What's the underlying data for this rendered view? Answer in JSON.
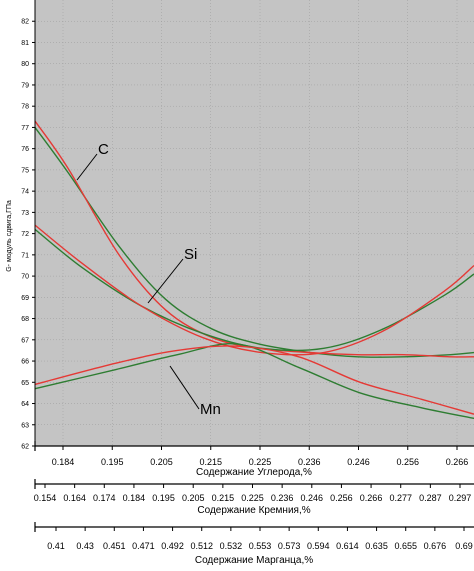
{
  "chart_data": {
    "type": "line",
    "ylabel": "G- модуль сдвига,ГПа",
    "ylim": [
      62,
      83
    ],
    "yticks": [
      62,
      63,
      64,
      65,
      66,
      67,
      68,
      69,
      70,
      71,
      72,
      73,
      74,
      75,
      76,
      77,
      78,
      79,
      80,
      81,
      82
    ],
    "grid": true,
    "background": "#c4c4c4",
    "axes": [
      {
        "id": "carbon",
        "title": "Содержание Углерода,%",
        "xlim": [
          0.177,
          0.271
        ],
        "tick_labels": [
          "0.184",
          "0.195",
          "0.205",
          "0.215",
          "0.225",
          "0.236",
          "0.246",
          "0.256",
          "0.266"
        ]
      },
      {
        "id": "silicon",
        "title": "Содержание Кремния,%",
        "xlim": [
          0.148,
          0.297
        ],
        "tick_labels": [
          "0.154",
          "0.164",
          "0.174",
          "0.184",
          "0.195",
          "0.205",
          "0.215",
          "0.225",
          "0.236",
          "0.246",
          "0.256",
          "0.266",
          "0.277",
          "0.287",
          "0.297"
        ]
      },
      {
        "id": "manganese",
        "title": "Содержание Марганца,%",
        "xlim": [
          0.397,
          0.69
        ],
        "tick_labels": [
          "0.41",
          "0.43",
          "0.451",
          "0.471",
          "0.492",
          "0.512",
          "0.532",
          "0.553",
          "0.573",
          "0.594",
          "0.614",
          "0.635",
          "0.655",
          "0.676",
          "0.69"
        ]
      }
    ],
    "series": [
      {
        "name": "C",
        "axis": "carbon",
        "curves": [
          {
            "color": "#2e7d32",
            "x": [
              0.177,
              0.184,
              0.195,
              0.205,
              0.215,
              0.225,
              0.236,
              0.246,
              0.256,
              0.266,
              0.271
            ],
            "y": [
              77.0,
              74.9,
              71.4,
              68.9,
              67.5,
              66.8,
              66.4,
              66.2,
              66.2,
              66.3,
              66.4
            ]
          },
          {
            "color": "#e53935",
            "x": [
              0.177,
              0.184,
              0.195,
              0.205,
              0.215,
              0.225,
              0.236,
              0.246,
              0.256,
              0.266,
              0.271
            ],
            "y": [
              77.3,
              75.1,
              71.0,
              68.4,
              67.1,
              66.6,
              66.4,
              66.3,
              66.3,
              66.2,
              66.2
            ]
          }
        ]
      },
      {
        "name": "Si",
        "axis": "silicon",
        "curves": [
          {
            "color": "#2e7d32",
            "x": [
              0.148,
              0.164,
              0.184,
              0.205,
              0.225,
              0.246,
              0.266,
              0.287,
              0.297
            ],
            "y": [
              72.2,
              70.4,
              68.6,
              67.3,
              66.6,
              66.6,
              67.5,
              69.1,
              70.1
            ]
          },
          {
            "color": "#e53935",
            "x": [
              0.148,
              0.164,
              0.184,
              0.205,
              0.225,
              0.246,
              0.266,
              0.287,
              0.297
            ],
            "y": [
              72.4,
              70.6,
              68.6,
              67.1,
              66.4,
              66.4,
              67.4,
              69.3,
              70.5
            ]
          }
        ]
      },
      {
        "name": "Mn",
        "axis": "manganese",
        "curves": [
          {
            "color": "#2e7d32",
            "x": [
              0.397,
              0.451,
              0.492,
              0.532,
              0.573,
              0.614,
              0.655,
              0.69
            ],
            "y": [
              64.7,
              65.6,
              66.3,
              66.8,
              65.7,
              64.5,
              63.8,
              63.3
            ]
          },
          {
            "color": "#e53935",
            "x": [
              0.397,
              0.451,
              0.492,
              0.532,
              0.573,
              0.614,
              0.655,
              0.69
            ],
            "y": [
              64.9,
              65.9,
              66.5,
              66.7,
              66.2,
              65.0,
              64.2,
              63.5
            ]
          }
        ]
      }
    ]
  }
}
